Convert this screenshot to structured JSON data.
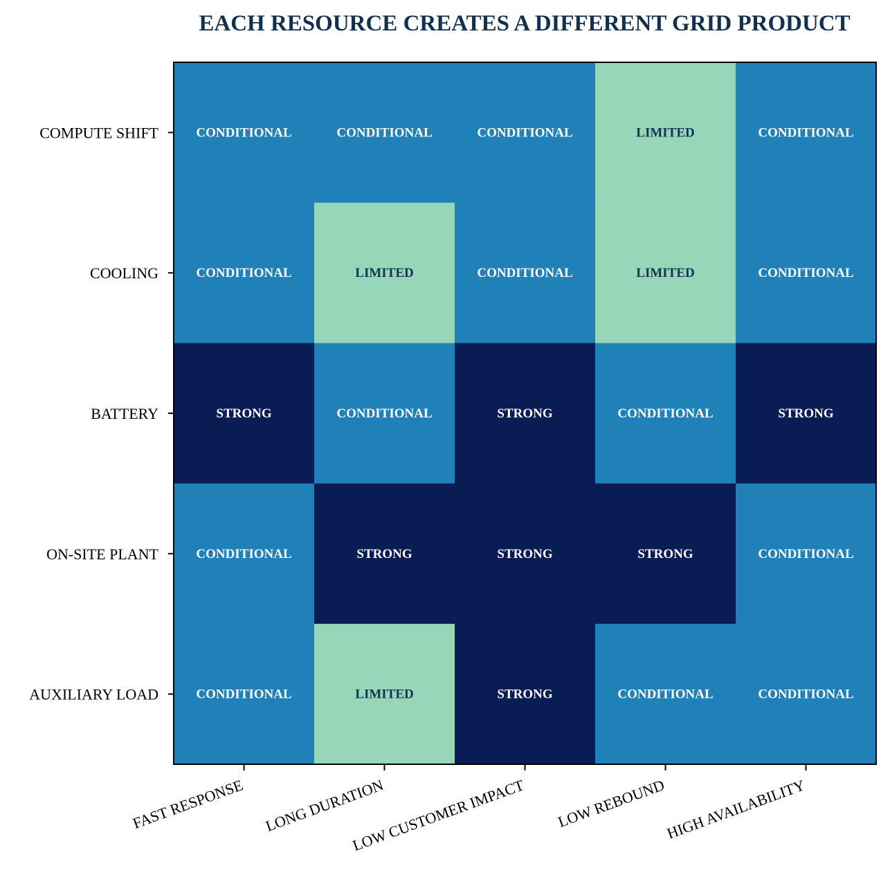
{
  "chart_data": {
    "type": "heatmap",
    "title": "EACH RESOURCE CREATES A DIFFERENT GRID PRODUCT",
    "xlabel": "",
    "ylabel": "",
    "x_categories": [
      "FAST RESPONSE",
      "LONG DURATION",
      "LOW CUSTOMER IMPACT",
      "LOW REBOUND",
      "HIGH AVAILABILITY"
    ],
    "y_categories": [
      "COMPUTE SHIFT",
      "COOLING",
      "BATTERY",
      "ON-SITE PLANT",
      "AUXILIARY LOAD"
    ],
    "values": [
      [
        "CONDITIONAL",
        "CONDITIONAL",
        "CONDITIONAL",
        "LIMITED",
        "CONDITIONAL"
      ],
      [
        "CONDITIONAL",
        "LIMITED",
        "CONDITIONAL",
        "LIMITED",
        "CONDITIONAL"
      ],
      [
        "STRONG",
        "CONDITIONAL",
        "STRONG",
        "CONDITIONAL",
        "STRONG"
      ],
      [
        "CONDITIONAL",
        "STRONG",
        "STRONG",
        "STRONG",
        "CONDITIONAL"
      ],
      [
        "CONDITIONAL",
        "LIMITED",
        "STRONG",
        "CONDITIONAL",
        "CONDITIONAL"
      ]
    ],
    "levels": {
      "STRONG": "#0a1c54",
      "CONDITIONAL": "#1f81b8",
      "LIMITED": "#97d6b9"
    },
    "label_colors": {
      "STRONG": "#ffffff",
      "CONDITIONAL": "#ffffff",
      "LIMITED": "#12344f"
    },
    "title_color": "#13314f",
    "grid": false,
    "legend": "none"
  }
}
